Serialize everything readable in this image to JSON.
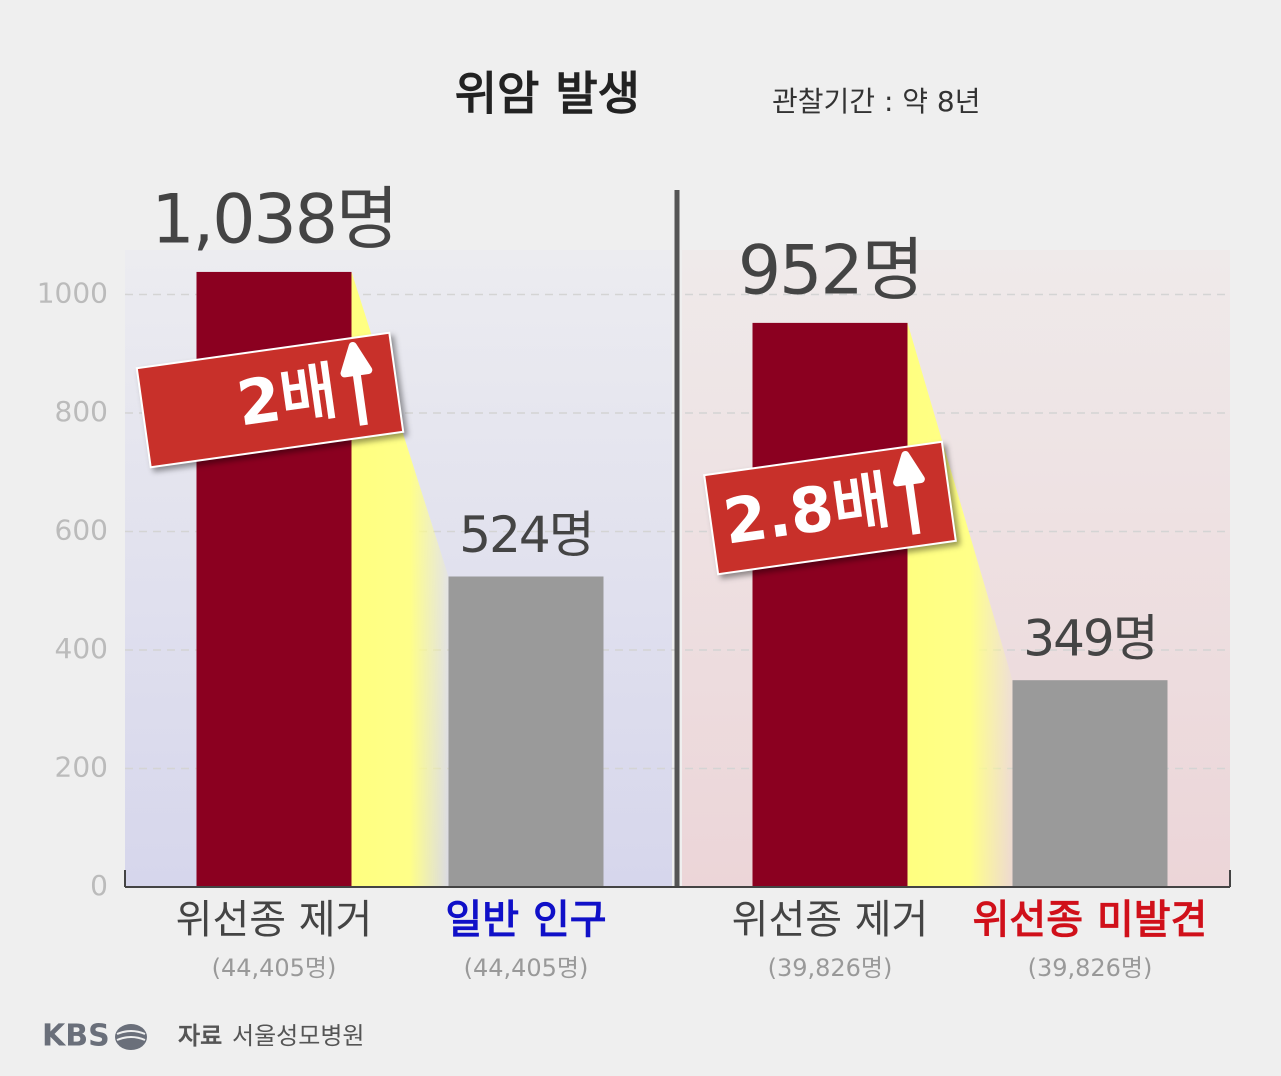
{
  "chart_data": {
    "type": "bar",
    "title": "위암 발생",
    "subtitle": "관찰기간 : 약 8년",
    "ylim": [
      0,
      1075
    ],
    "yticks": [
      0,
      200,
      400,
      600,
      800,
      1000
    ],
    "grid": true,
    "panels": [
      {
        "categories": [
          "위선종 제거",
          "일반 인구"
        ],
        "sublabels": [
          "(44,405명)",
          "(44,405명)"
        ],
        "category_colors": [
          "#444444",
          "#1010c8"
        ],
        "colors": [
          "#8b0020",
          "#9a9a9a"
        ],
        "values": [
          1038,
          524
        ],
        "value_labels": [
          "1,038명",
          "524명"
        ],
        "badge": "2배"
      },
      {
        "categories": [
          "위선종 제거",
          "위선종 미발견"
        ],
        "sublabels": [
          "(39,826명)",
          "(39,826명)"
        ],
        "category_colors": [
          "#444444",
          "#d0101a"
        ],
        "colors": [
          "#8b0020",
          "#9a9a9a"
        ],
        "values": [
          952,
          349
        ],
        "value_labels": [
          "952명",
          "349명"
        ],
        "badge": "2.8배"
      }
    ]
  },
  "footer": {
    "logo": "KBS",
    "source_label": "자료",
    "source": "서울성모병원"
  }
}
